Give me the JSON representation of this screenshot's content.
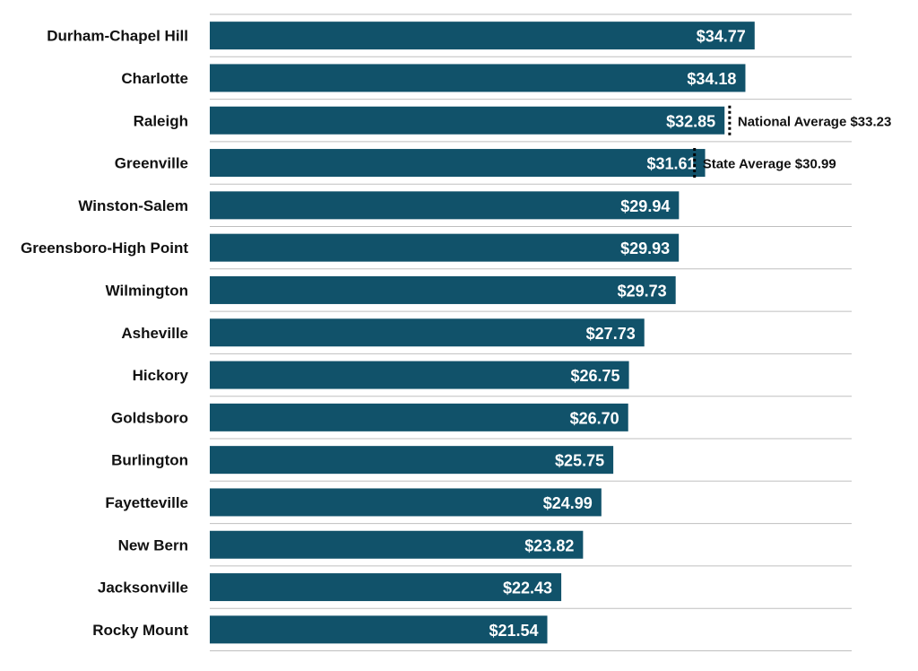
{
  "chart_data": {
    "type": "bar",
    "orientation": "horizontal",
    "categories": [
      "Durham-Chapel Hill",
      "Charlotte",
      "Raleigh",
      "Greenville",
      "Winston-Salem",
      "Greensboro-High Point",
      "Wilmington",
      "Asheville",
      "Hickory",
      "Goldsboro",
      "Burlington",
      "Fayetteville",
      "New Bern",
      "Jacksonville",
      "Rocky Mount"
    ],
    "values": [
      34.77,
      34.18,
      32.85,
      31.61,
      29.94,
      29.93,
      29.73,
      27.73,
      26.75,
      26.7,
      25.75,
      24.99,
      23.82,
      22.43,
      21.54
    ],
    "value_labels": [
      "$34.77",
      "$34.18",
      "$32.85",
      "$31.61",
      "$29.94",
      "$29.93",
      "$29.73",
      "$27.73",
      "$26.75",
      "$26.70",
      "$25.75",
      "$24.99",
      "$23.82",
      "$22.43",
      "$21.54"
    ],
    "xlim": [
      0,
      41
    ],
    "reference_lines": [
      {
        "label": "National Average $33.23",
        "value": 33.23,
        "row": 2
      },
      {
        "label": "State Average $30.99",
        "value": 30.99,
        "row": 3
      }
    ],
    "grid": true,
    "legend": "none",
    "title": "",
    "xlabel": "",
    "ylabel": "",
    "colors": {
      "bar": "#11526A",
      "grid": "#bfbfbf",
      "reference": "#000000"
    }
  }
}
